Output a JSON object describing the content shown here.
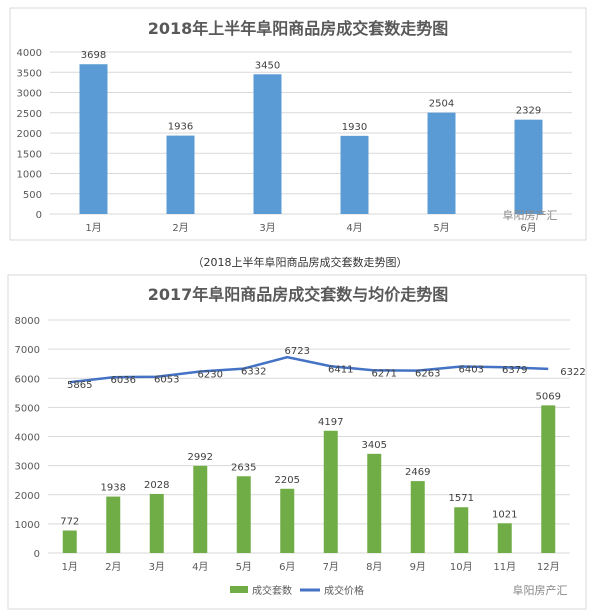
{
  "caption": "（2018上半年阜阳商品房成交套数走势图）",
  "watermark": "阜阳房产汇",
  "chart_data": [
    {
      "type": "bar",
      "title": "2018年上半年阜阳商品房成交套数走势图",
      "categories": [
        "1月",
        "2月",
        "3月",
        "4月",
        "5月",
        "6月"
      ],
      "values": [
        3698,
        1936,
        3450,
        1930,
        2504,
        2329
      ],
      "ylim": [
        0,
        4000
      ],
      "yticks": [
        0,
        500,
        1000,
        1500,
        2000,
        2500,
        3000,
        3500,
        4000
      ],
      "grid": true,
      "color": "#5B9BD5"
    },
    {
      "type": "bar+line",
      "title": "2017年阜阳商品房成交套数与均价走势图",
      "categories": [
        "1月",
        "2月",
        "3月",
        "4月",
        "5月",
        "6月",
        "7月",
        "8月",
        "9月",
        "10月",
        "11月",
        "12月"
      ],
      "series": [
        {
          "name": "成交套数",
          "type": "bar",
          "color": "#70AD47",
          "values": [
            772,
            1938,
            2028,
            2992,
            2635,
            2205,
            4197,
            3405,
            2469,
            1571,
            1021,
            5069
          ]
        },
        {
          "name": "成交价格",
          "type": "line",
          "color": "#4472C4",
          "values": [
            5865,
            6036,
            6053,
            6230,
            6332,
            6723,
            6411,
            6271,
            6263,
            6403,
            6379,
            6322
          ]
        }
      ],
      "ylim": [
        0,
        8000
      ],
      "yticks": [
        0,
        1000,
        2000,
        3000,
        4000,
        5000,
        6000,
        7000,
        8000
      ],
      "grid": true,
      "legend": "bottom"
    }
  ]
}
